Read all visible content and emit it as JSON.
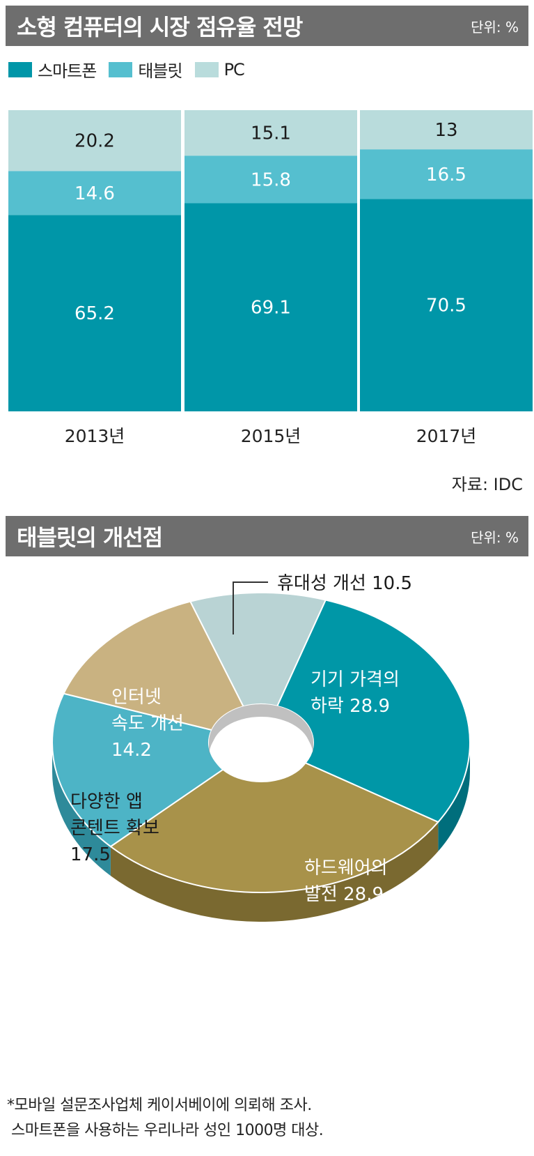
{
  "chart1": {
    "title": "소형 컴퓨터의 시장 점유율 전망",
    "unit": "단위: %",
    "source": "자료: IDC"
  },
  "chart2": {
    "title": "태블릿의 개선점",
    "unit": "단위: %"
  },
  "footnote": {
    "line1": "*모바일 설문조사업체 케이서베이에 의뢰해 조사.",
    "line2": "스마트폰을 사용하는 우리나라 성인 1000명 대상."
  },
  "chart_data": [
    {
      "type": "bar",
      "stacked": true,
      "title": "소형 컴퓨터의 시장 점유율 전망",
      "unit": "%",
      "categories": [
        "2013년",
        "2015년",
        "2017년"
      ],
      "value_labels": [
        [
          "65.2",
          "69.1",
          "70.5"
        ],
        [
          "14.6",
          "15.8",
          "16.5"
        ],
        [
          "20.2",
          "15.1",
          "13"
        ]
      ],
      "series": [
        {
          "name": "스마트폰",
          "values": [
            65.2,
            69.1,
            70.5
          ],
          "color": "#0096a8"
        },
        {
          "name": "태블릿",
          "values": [
            14.6,
            15.8,
            16.5
          ],
          "color": "#55bfcf"
        },
        {
          "name": "PC",
          "values": [
            20.2,
            15.1,
            13.0
          ],
          "color": "#b9dcdc"
        }
      ],
      "legend": "top-left",
      "ylim": [
        0,
        100
      ]
    },
    {
      "type": "pie",
      "donut": true,
      "title": "태블릿의 개선점",
      "unit": "%",
      "slices": [
        {
          "lines": [
            "기기 가격의",
            "하락 28.9"
          ],
          "value": 28.9,
          "color": "#0097a7",
          "side": "#006e7c"
        },
        {
          "lines": [
            "하드웨어의",
            "발전 28.9"
          ],
          "value": 28.9,
          "color": "#a8924a",
          "side": "#7a6930"
        },
        {
          "lines": [
            "다양한 앱",
            "콘텐트 확보",
            "17.5"
          ],
          "value": 17.5,
          "color": "#4db4c6",
          "side": "#2e8a9a"
        },
        {
          "lines": [
            "인터넷",
            "속도 개선",
            "14.2"
          ],
          "value": 14.2,
          "color": "#c9b281",
          "side": "#97834f"
        },
        {
          "lines": [
            "휴대성 개선 10.5"
          ],
          "value": 10.5,
          "color": "#b9d3d4",
          "side": "#8aa4a5"
        }
      ],
      "label_text_colors": [
        "#ffffff",
        "#ffffff",
        "#1a1a1a",
        "#ffffff",
        "#1a1a1a"
      ]
    }
  ]
}
